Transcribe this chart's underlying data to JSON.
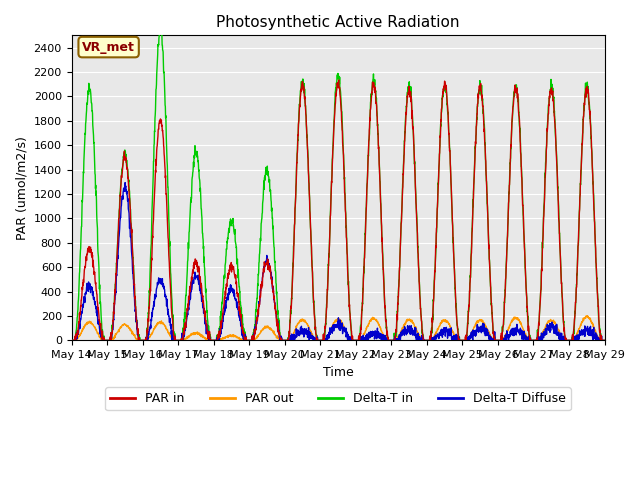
{
  "title": "Photosynthetic Active Radiation",
  "xlabel": "Time",
  "ylabel": "PAR (umol/m2/s)",
  "ylim": [
    0,
    2500
  ],
  "yticks": [
    0,
    200,
    400,
    600,
    800,
    1000,
    1200,
    1400,
    1600,
    1800,
    2000,
    2200,
    2400
  ],
  "bg_color": "#e8e8e8",
  "text_annotation": "VR_met",
  "colors": {
    "par_in": "#cc0000",
    "par_out": "#ff9900",
    "delta_t_in": "#00cc00",
    "delta_t_diffuse": "#0000cc"
  },
  "legend_labels": [
    "PAR in",
    "PAR out",
    "Delta-T in",
    "Delta-T Diffuse"
  ],
  "x_tick_labels": [
    "May 14",
    "May 15",
    "May 16",
    "May 17",
    "May 18",
    "May 19",
    "May 20",
    "May 21",
    "May 22",
    "May 23",
    "May 24",
    "May 25",
    "May 26",
    "May 27",
    "May 28",
    "May 29"
  ],
  "days": 15,
  "par_in_peaks": [
    750,
    1500,
    1800,
    630,
    610,
    640,
    2100,
    2100,
    2100,
    2050,
    2100,
    2070,
    2070,
    2050,
    2060
  ],
  "par_out_peaks": [
    150,
    130,
    150,
    60,
    40,
    110,
    170,
    170,
    180,
    170,
    165,
    165,
    185,
    165,
    195
  ],
  "delta_t_peaks": [
    2050,
    1540,
    2540,
    1540,
    980,
    1400,
    2130,
    2170,
    2130,
    2090,
    2090,
    2080,
    2080,
    2090,
    2080
  ],
  "delta_d_peaks": [
    450,
    1260,
    500,
    540,
    420,
    650,
    80,
    130,
    60,
    90,
    75,
    100,
    80,
    110,
    80
  ]
}
